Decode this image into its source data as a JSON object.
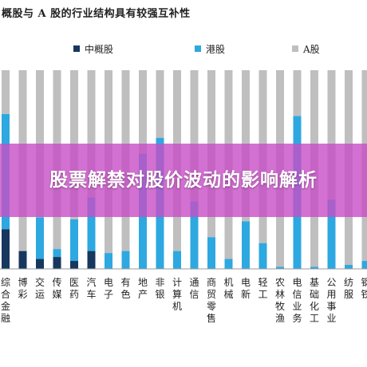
{
  "chart_data": {
    "type": "bar",
    "stacked": true,
    "percent_stacked": true,
    "title": "概股与 A 股的行业结构具有较强互补性",
    "ylim": [
      0,
      100
    ],
    "legend_position": "top",
    "categories": [
      "综合金融",
      "博彩",
      "交运",
      "传媒",
      "医药",
      "汽车",
      "电子",
      "有色",
      "地产",
      "非银",
      "计算机",
      "通信",
      "商贸零售",
      "机械",
      "电新",
      "轻工",
      "农林牧渔",
      "电信业务",
      "基础化工",
      "公用事业",
      "纺服",
      "钢铁"
    ],
    "series": [
      {
        "name": "中概股",
        "color": "#17375e",
        "values": [
          20,
          9,
          5,
          6,
          4,
          9,
          0,
          0,
          0,
          0,
          0,
          0,
          0,
          0,
          0,
          0,
          0,
          0,
          0,
          0,
          0,
          0
        ]
      },
      {
        "name": "港股",
        "color": "#2ea8e0",
        "values": [
          58,
          0,
          21,
          4,
          21,
          27,
          8,
          9,
          58,
          66,
          9,
          34,
          16,
          5,
          24,
          13,
          1,
          77,
          1,
          35,
          2,
          4
        ]
      },
      {
        "name": "A股",
        "color": "#bfbfbf",
        "values": [
          22,
          91,
          74,
          90,
          75,
          64,
          92,
          91,
          42,
          34,
          91,
          66,
          84,
          95,
          76,
          87,
          99,
          23,
          99,
          65,
          98,
          96
        ]
      }
    ]
  },
  "overlay": {
    "text": "股票解禁对股价波动的影响解析"
  }
}
